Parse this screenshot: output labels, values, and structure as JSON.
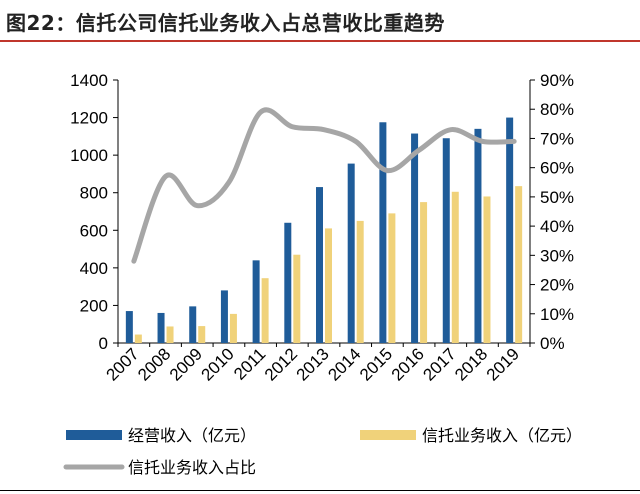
{
  "title": "图22：信托公司信托业务收入占总营收比重趋势",
  "chart_data": {
    "type": "bar",
    "categories": [
      "2007",
      "2008",
      "2009",
      "2010",
      "2011",
      "2012",
      "2013",
      "2014",
      "2015",
      "2016",
      "2017",
      "2018",
      "2019"
    ],
    "series": [
      {
        "name": "经营收入（亿元）",
        "kind": "bar",
        "axis": "left",
        "color": "#1f5c99",
        "values": [
          170,
          160,
          195,
          280,
          440,
          640,
          830,
          955,
          1175,
          1115,
          1090,
          1140,
          1200
        ]
      },
      {
        "name": "信托业务收入（亿元）",
        "kind": "bar",
        "axis": "left",
        "color": "#f0d27a",
        "values": [
          45,
          88,
          90,
          155,
          345,
          470,
          610,
          650,
          690,
          750,
          805,
          780,
          835
        ]
      },
      {
        "name": "信托业务收入占比",
        "kind": "line",
        "axis": "right",
        "color": "#a6a6a6",
        "values": [
          28,
          57,
          47,
          55,
          79,
          74,
          73,
          69,
          59,
          66,
          73,
          69,
          69
        ]
      }
    ],
    "y_left": {
      "min": 0,
      "max": 1400,
      "ticks": [
        0,
        200,
        400,
        600,
        800,
        1000,
        1200,
        1400
      ]
    },
    "y_right": {
      "min": 0,
      "max": 90,
      "ticks": [
        0,
        10,
        20,
        30,
        40,
        50,
        60,
        70,
        80,
        90
      ],
      "suffix": "%"
    },
    "grid": false,
    "legend_position": "bottom"
  }
}
